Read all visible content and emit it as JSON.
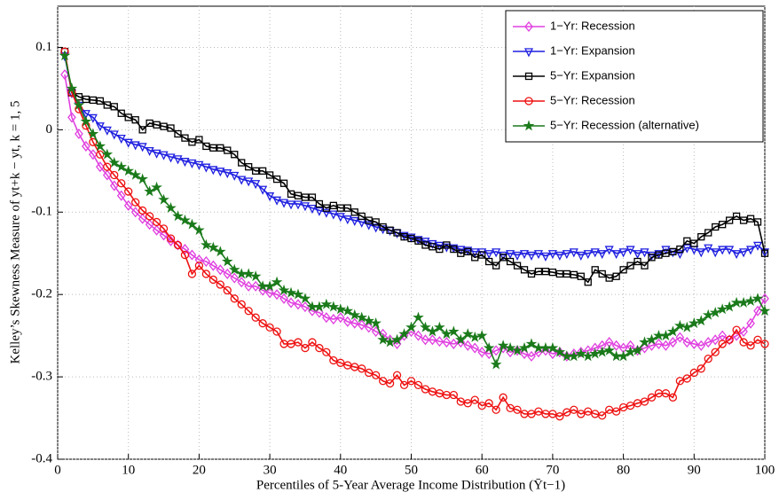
{
  "chart_data": {
    "type": "line",
    "xlabel": "Percentiles of 5-Year Average Income Distribution (Ȳt−1)",
    "ylabel": "Kelley’s Skewness Measure of yt+k − yt, k = 1, 5",
    "xlim": [
      0,
      100
    ],
    "ylim": [
      -0.4,
      0.15
    ],
    "xticks": [
      0,
      10,
      20,
      30,
      40,
      50,
      60,
      70,
      80,
      90,
      100
    ],
    "yticks": [
      0.1,
      0,
      -0.1,
      -0.2,
      -0.3,
      -0.4
    ],
    "grid": true,
    "legend": "upper right",
    "x": [
      1,
      2,
      3,
      4,
      5,
      6,
      7,
      8,
      9,
      10,
      11,
      12,
      13,
      14,
      15,
      16,
      17,
      18,
      19,
      20,
      21,
      22,
      23,
      24,
      25,
      26,
      27,
      28,
      29,
      30,
      31,
      32,
      33,
      34,
      35,
      36,
      37,
      38,
      39,
      40,
      41,
      42,
      43,
      44,
      45,
      46,
      47,
      48,
      49,
      50,
      51,
      52,
      53,
      54,
      55,
      56,
      57,
      58,
      59,
      60,
      61,
      62,
      63,
      64,
      65,
      66,
      67,
      68,
      69,
      70,
      71,
      72,
      73,
      74,
      75,
      76,
      77,
      78,
      79,
      80,
      81,
      82,
      83,
      84,
      85,
      86,
      87,
      88,
      89,
      90,
      91,
      92,
      93,
      94,
      95,
      96,
      97,
      98,
      99,
      100
    ],
    "series": [
      {
        "name": "1−Yr: Recession",
        "color": "#e040e0",
        "marker": "diamond",
        "values": [
          0.067,
          0.015,
          -0.005,
          -0.02,
          -0.03,
          -0.045,
          -0.055,
          -0.068,
          -0.08,
          -0.092,
          -0.1,
          -0.108,
          -0.115,
          -0.122,
          -0.128,
          -0.135,
          -0.14,
          -0.145,
          -0.152,
          -0.158,
          -0.16,
          -0.165,
          -0.17,
          -0.175,
          -0.18,
          -0.185,
          -0.19,
          -0.19,
          -0.195,
          -0.198,
          -0.2,
          -0.205,
          -0.21,
          -0.212,
          -0.215,
          -0.22,
          -0.222,
          -0.228,
          -0.23,
          -0.228,
          -0.233,
          -0.235,
          -0.237,
          -0.24,
          -0.245,
          -0.248,
          -0.255,
          -0.26,
          -0.25,
          -0.245,
          -0.25,
          -0.255,
          -0.255,
          -0.257,
          -0.258,
          -0.26,
          -0.258,
          -0.262,
          -0.265,
          -0.27,
          -0.272,
          -0.268,
          -0.265,
          -0.27,
          -0.268,
          -0.272,
          -0.275,
          -0.27,
          -0.268,
          -0.272,
          -0.27,
          -0.275,
          -0.272,
          -0.27,
          -0.268,
          -0.265,
          -0.262,
          -0.258,
          -0.262,
          -0.265,
          -0.262,
          -0.268,
          -0.265,
          -0.262,
          -0.26,
          -0.262,
          -0.258,
          -0.252,
          -0.258,
          -0.26,
          -0.262,
          -0.258,
          -0.255,
          -0.25,
          -0.255,
          -0.25,
          -0.245,
          -0.235,
          -0.22,
          -0.205
        ]
      },
      {
        "name": "1−Yr: Expansion",
        "color": "#1f1fe0",
        "marker": "tri-down",
        "values": [
          0.09,
          0.045,
          0.03,
          0.02,
          0.015,
          0.005,
          0,
          -0.005,
          -0.01,
          -0.015,
          -0.018,
          -0.02,
          -0.025,
          -0.028,
          -0.03,
          -0.033,
          -0.035,
          -0.038,
          -0.04,
          -0.042,
          -0.045,
          -0.048,
          -0.05,
          -0.052,
          -0.055,
          -0.06,
          -0.062,
          -0.065,
          -0.072,
          -0.08,
          -0.085,
          -0.088,
          -0.09,
          -0.09,
          -0.092,
          -0.095,
          -0.098,
          -0.1,
          -0.102,
          -0.105,
          -0.108,
          -0.11,
          -0.112,
          -0.115,
          -0.118,
          -0.12,
          -0.122,
          -0.125,
          -0.128,
          -0.13,
          -0.133,
          -0.135,
          -0.138,
          -0.14,
          -0.142,
          -0.143,
          -0.145,
          -0.146,
          -0.148,
          -0.148,
          -0.15,
          -0.148,
          -0.152,
          -0.15,
          -0.152,
          -0.15,
          -0.152,
          -0.15,
          -0.153,
          -0.15,
          -0.152,
          -0.15,
          -0.148,
          -0.152,
          -0.15,
          -0.148,
          -0.15,
          -0.145,
          -0.15,
          -0.148,
          -0.145,
          -0.15,
          -0.148,
          -0.152,
          -0.15,
          -0.145,
          -0.148,
          -0.15,
          -0.143,
          -0.145,
          -0.148,
          -0.143,
          -0.148,
          -0.145,
          -0.145,
          -0.15,
          -0.148,
          -0.145,
          -0.14,
          -0.148
        ]
      },
      {
        "name": "5−Yr: Expansion",
        "color": "#000000",
        "marker": "square",
        "values": [
          0.095,
          0.045,
          0.04,
          0.037,
          0.036,
          0.035,
          0.03,
          0.028,
          0.02,
          0.015,
          0.012,
          0,
          0.008,
          0.006,
          0.004,
          0.002,
          -0.005,
          -0.01,
          -0.015,
          -0.012,
          -0.02,
          -0.022,
          -0.022,
          -0.025,
          -0.03,
          -0.04,
          -0.045,
          -0.05,
          -0.05,
          -0.055,
          -0.06,
          -0.065,
          -0.078,
          -0.08,
          -0.082,
          -0.082,
          -0.09,
          -0.095,
          -0.092,
          -0.095,
          -0.095,
          -0.1,
          -0.105,
          -0.11,
          -0.112,
          -0.118,
          -0.122,
          -0.125,
          -0.13,
          -0.132,
          -0.135,
          -0.14,
          -0.142,
          -0.145,
          -0.14,
          -0.145,
          -0.15,
          -0.148,
          -0.155,
          -0.152,
          -0.16,
          -0.165,
          -0.155,
          -0.16,
          -0.165,
          -0.17,
          -0.175,
          -0.172,
          -0.172,
          -0.173,
          -0.175,
          -0.175,
          -0.176,
          -0.178,
          -0.185,
          -0.17,
          -0.175,
          -0.18,
          -0.178,
          -0.17,
          -0.165,
          -0.16,
          -0.165,
          -0.155,
          -0.152,
          -0.15,
          -0.148,
          -0.145,
          -0.135,
          -0.138,
          -0.13,
          -0.125,
          -0.118,
          -0.115,
          -0.11,
          -0.105,
          -0.11,
          -0.108,
          -0.112,
          -0.15
        ]
      },
      {
        "name": "5−Yr: Recession",
        "color": "#ee1111",
        "marker": "circle",
        "values": [
          0.095,
          0.045,
          0.025,
          0.005,
          -0.015,
          -0.03,
          -0.045,
          -0.055,
          -0.065,
          -0.075,
          -0.088,
          -0.098,
          -0.105,
          -0.112,
          -0.12,
          -0.132,
          -0.14,
          -0.152,
          -0.175,
          -0.165,
          -0.175,
          -0.182,
          -0.188,
          -0.195,
          -0.205,
          -0.212,
          -0.22,
          -0.228,
          -0.235,
          -0.24,
          -0.245,
          -0.26,
          -0.26,
          -0.258,
          -0.265,
          -0.258,
          -0.265,
          -0.27,
          -0.28,
          -0.283,
          -0.286,
          -0.288,
          -0.29,
          -0.295,
          -0.298,
          -0.305,
          -0.308,
          -0.298,
          -0.31,
          -0.305,
          -0.31,
          -0.315,
          -0.318,
          -0.32,
          -0.322,
          -0.322,
          -0.33,
          -0.332,
          -0.328,
          -0.335,
          -0.332,
          -0.34,
          -0.325,
          -0.338,
          -0.34,
          -0.345,
          -0.345,
          -0.342,
          -0.345,
          -0.345,
          -0.348,
          -0.343,
          -0.34,
          -0.345,
          -0.342,
          -0.345,
          -0.347,
          -0.34,
          -0.342,
          -0.337,
          -0.335,
          -0.332,
          -0.33,
          -0.325,
          -0.32,
          -0.32,
          -0.325,
          -0.305,
          -0.302,
          -0.295,
          -0.29,
          -0.278,
          -0.27,
          -0.26,
          -0.255,
          -0.243,
          -0.258,
          -0.262,
          -0.255,
          -0.26
        ]
      },
      {
        "name": "5−Yr: Recession (alternative)",
        "color": "#1a7a1a",
        "marker": "star",
        "values": [
          0.09,
          0.05,
          0.03,
          0.01,
          -0.005,
          -0.02,
          -0.03,
          -0.04,
          -0.045,
          -0.05,
          -0.055,
          -0.06,
          -0.075,
          -0.07,
          -0.085,
          -0.095,
          -0.105,
          -0.11,
          -0.115,
          -0.122,
          -0.14,
          -0.143,
          -0.148,
          -0.16,
          -0.17,
          -0.175,
          -0.175,
          -0.178,
          -0.19,
          -0.19,
          -0.185,
          -0.195,
          -0.198,
          -0.2,
          -0.205,
          -0.215,
          -0.215,
          -0.212,
          -0.215,
          -0.218,
          -0.22,
          -0.225,
          -0.228,
          -0.232,
          -0.235,
          -0.255,
          -0.258,
          -0.255,
          -0.248,
          -0.24,
          -0.228,
          -0.24,
          -0.245,
          -0.24,
          -0.248,
          -0.245,
          -0.255,
          -0.248,
          -0.252,
          -0.25,
          -0.265,
          -0.285,
          -0.262,
          -0.265,
          -0.268,
          -0.265,
          -0.26,
          -0.265,
          -0.265,
          -0.265,
          -0.27,
          -0.275,
          -0.275,
          -0.272,
          -0.275,
          -0.272,
          -0.27,
          -0.268,
          -0.275,
          -0.275,
          -0.27,
          -0.268,
          -0.258,
          -0.255,
          -0.25,
          -0.25,
          -0.245,
          -0.238,
          -0.24,
          -0.235,
          -0.232,
          -0.225,
          -0.222,
          -0.218,
          -0.215,
          -0.21,
          -0.21,
          -0.208,
          -0.205,
          -0.22
        ]
      }
    ]
  }
}
